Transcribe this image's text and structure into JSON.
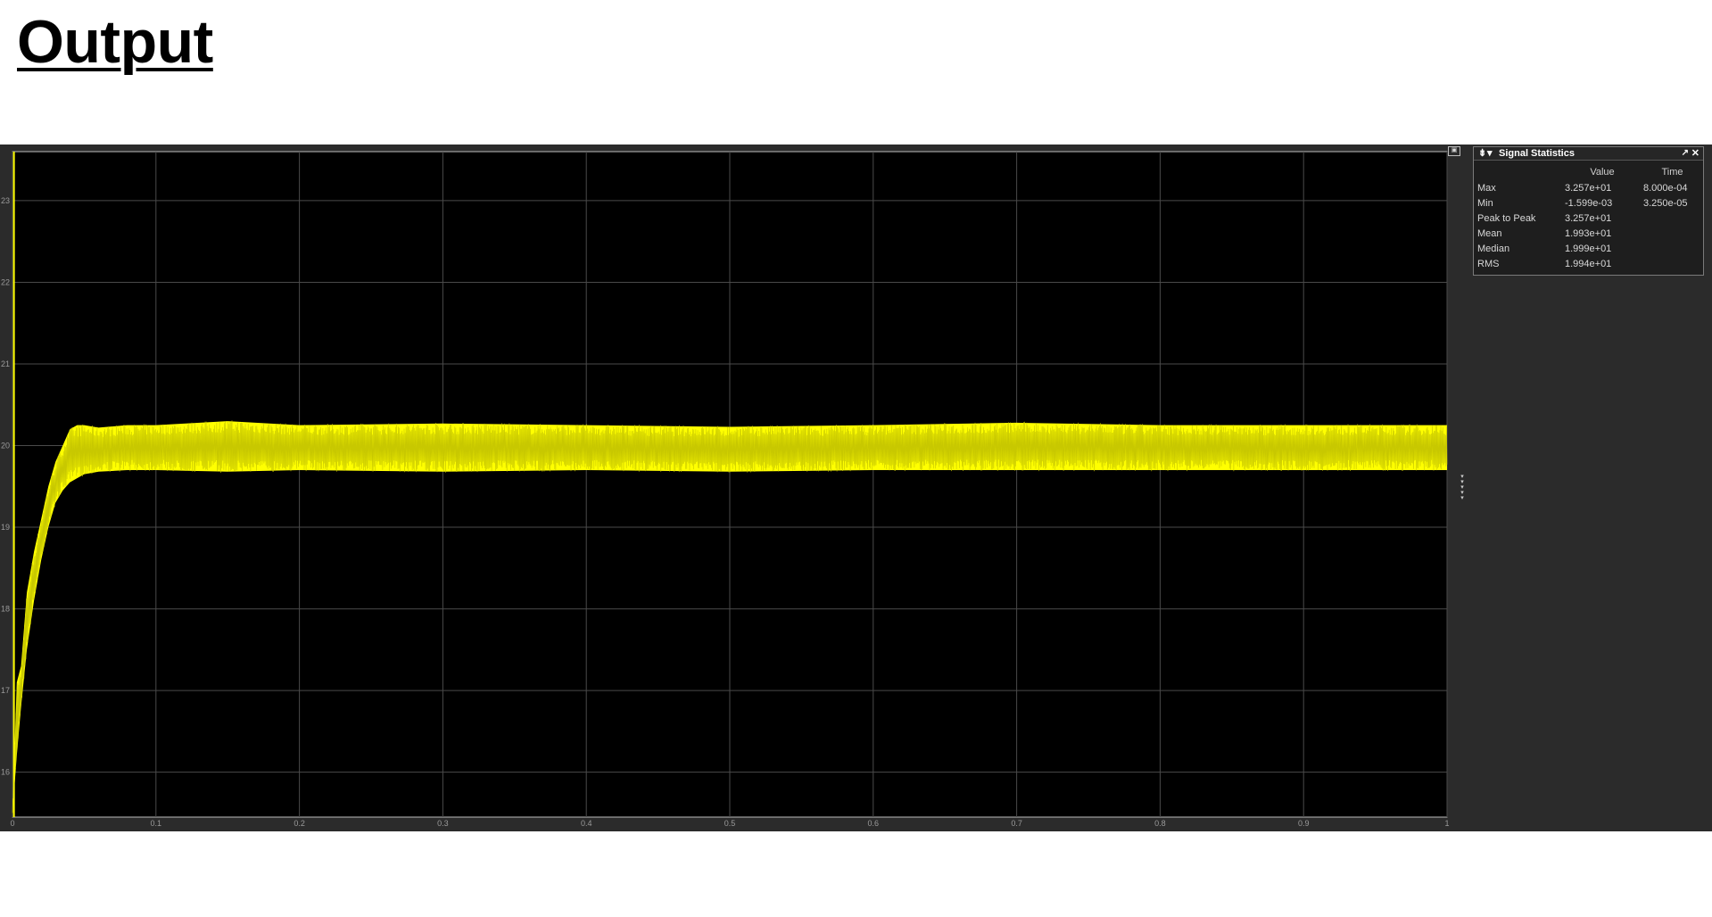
{
  "page": {
    "title": "Output"
  },
  "scope": {
    "expand_icon": "window-expand-icon",
    "dock_grip_icon": "grip-dots-icon"
  },
  "statistics": {
    "title": "Signal Statistics",
    "pin_icon": "pin-icon",
    "collapse_icon": "caret-down-icon",
    "undock_icon": "undock-arrow-icon",
    "close_icon": "close-icon",
    "columns": [
      "",
      "Value",
      "Time"
    ],
    "rows": [
      {
        "label": "Max",
        "value": "3.257e+01",
        "time": "8.000e-04"
      },
      {
        "label": "Min",
        "value": "-1.599e-03",
        "time": "3.250e-05"
      },
      {
        "label": "Peak to Peak",
        "value": "3.257e+01",
        "time": ""
      },
      {
        "label": "Mean",
        "value": "1.993e+01",
        "time": ""
      },
      {
        "label": "Median",
        "value": "1.999e+01",
        "time": ""
      },
      {
        "label": "RMS",
        "value": "1.994e+01",
        "time": ""
      }
    ]
  },
  "colors": {
    "plot_background": "#000000",
    "figure_background": "#2b2b2b",
    "grid": "#4a4a4a",
    "signal": "#ffff00",
    "tick_text": "#9a9a9a"
  },
  "chart_data": {
    "type": "line",
    "title": "",
    "xlabel": "",
    "ylabel": "",
    "xlim": [
      0,
      1
    ],
    "ylim": [
      15.45,
      23.6
    ],
    "grid": true,
    "x_ticks": [
      "0",
      "0.1",
      "0.2",
      "0.3",
      "0.4",
      "0.5",
      "0.6",
      "0.7",
      "0.8",
      "0.9",
      "1"
    ],
    "x_tick_values": [
      0,
      0.1,
      0.2,
      0.3,
      0.4,
      0.5,
      0.6,
      0.7,
      0.8,
      0.9,
      1
    ],
    "y_ticks": [
      "16",
      "17",
      "18",
      "19",
      "20",
      "21",
      "22",
      "23"
    ],
    "y_tick_values": [
      16,
      17,
      18,
      19,
      20,
      21,
      22,
      23
    ],
    "series": [
      {
        "color": "#ffff00",
        "envelope": {
          "x": [
            0,
            0.003,
            0.006,
            0.01,
            0.015,
            0.02,
            0.025,
            0.03,
            0.035,
            0.04,
            0.045,
            0.05,
            0.06,
            0.08,
            0.1,
            0.15,
            0.2,
            0.3,
            0.4,
            0.5,
            0.6,
            0.7,
            0.8,
            0.9,
            1.0
          ],
          "upper": [
            15.5,
            17.1,
            17.3,
            18.2,
            18.7,
            19.1,
            19.5,
            19.8,
            20.0,
            20.2,
            20.25,
            20.25,
            20.22,
            20.25,
            20.25,
            20.3,
            20.25,
            20.27,
            20.25,
            20.23,
            20.25,
            20.28,
            20.25,
            20.25,
            20.25
          ],
          "lower": [
            15.5,
            16.2,
            16.8,
            17.5,
            18.1,
            18.6,
            19.0,
            19.3,
            19.45,
            19.55,
            19.6,
            19.65,
            19.68,
            19.7,
            19.7,
            19.68,
            19.7,
            19.68,
            19.7,
            19.68,
            19.7,
            19.7,
            19.7,
            19.7,
            19.7
          ]
        }
      }
    ]
  }
}
